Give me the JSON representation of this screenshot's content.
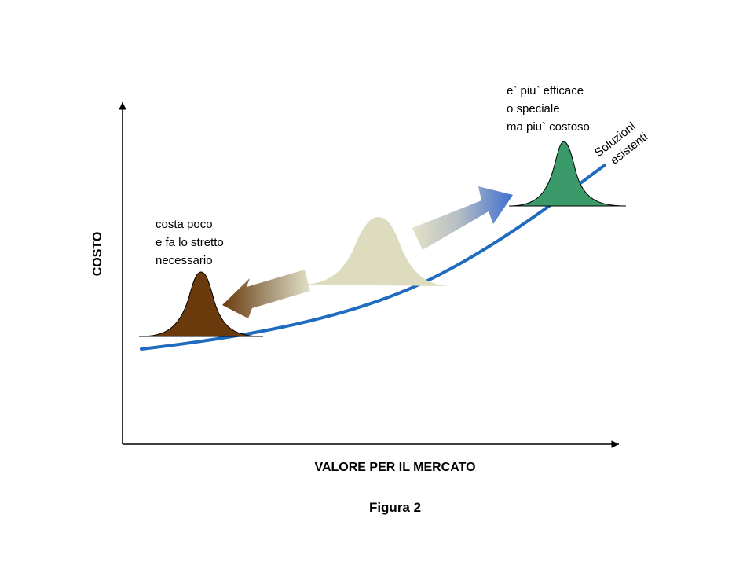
{
  "axes": {
    "x_label": "VALORE PER IL MERCATO",
    "y_label": "COSTO"
  },
  "caption": "Figura 2",
  "notes": {
    "low": [
      "costa poco",
      "e fa lo stretto",
      "necessario"
    ],
    "high": [
      "e` piu` efficace",
      "o speciale",
      "ma piu` costoso"
    ]
  },
  "curve_label": [
    "Soluzioni",
    "esistenti"
  ],
  "colors": {
    "curve": "#1f6bbf",
    "low_bell": "#6b3a0c",
    "mid_bell": "#dedcbe",
    "high_bell": "#3a9a6a",
    "arrow_left_head": "#6b3a0c",
    "arrow_right_head": "#4a74c8"
  }
}
